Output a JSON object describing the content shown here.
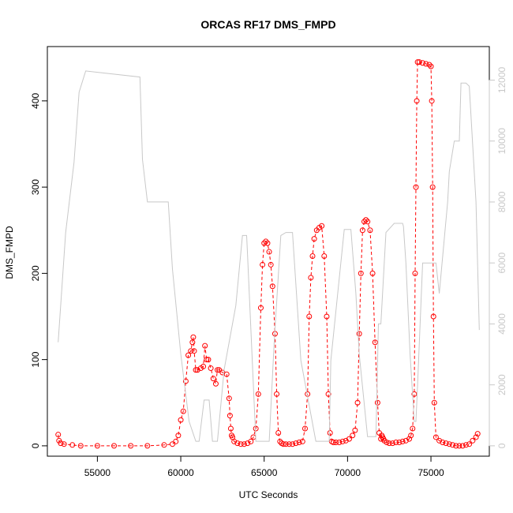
{
  "chart_data": {
    "type": "line",
    "title": "ORCAS RF17 DMS_FMPD",
    "xlabel": "UTC Seconds",
    "ylabel": "DMS_FMPD",
    "xlim": [
      52000,
      78500
    ],
    "ylim": [
      -12,
      463
    ],
    "x_ticks": [
      55000,
      60000,
      65000,
      70000,
      75000
    ],
    "x_tick_labels": [
      "55000",
      "60000",
      "65000",
      "70000",
      "75000"
    ],
    "y_ticks": [
      0,
      100,
      200,
      300,
      400
    ],
    "y_tick_labels": [
      "0",
      "100",
      "200",
      "300",
      "400"
    ],
    "y2lim": [
      -340,
      13100
    ],
    "y2_ticks": [
      0,
      2000,
      4000,
      6000,
      8000,
      10000,
      12000
    ],
    "y2_tick_labels": [
      "0",
      "2000",
      "4000",
      "6000",
      "8000",
      "10000",
      "12000"
    ],
    "grid": false,
    "series": [
      {
        "color": "#ff0000",
        "marker": "open-circle",
        "line": "dashed",
        "axis": "left",
        "x": [
          52650,
          52700,
          52800,
          53000,
          53500,
          54000,
          55000,
          56000,
          57000,
          58000,
          59000,
          59500,
          59700,
          59850,
          60000,
          60150,
          60300,
          60450,
          60600,
          60700,
          60750,
          60800,
          60900,
          61000,
          61200,
          61350,
          61450,
          61550,
          61650,
          61800,
          61950,
          62100,
          62200,
          62300,
          62500,
          62750,
          62900,
          62950,
          63000,
          63050,
          63100,
          63200,
          63400,
          63600,
          63800,
          64000,
          64200,
          64350,
          64500,
          64650,
          64800,
          64900,
          65000,
          65100,
          65200,
          65300,
          65400,
          65500,
          65650,
          65750,
          65850,
          65950,
          66050,
          66150,
          66300,
          66500,
          66700,
          66900,
          67100,
          67300,
          67450,
          67600,
          67700,
          67800,
          67900,
          68000,
          68150,
          68300,
          68450,
          68600,
          68750,
          68850,
          68950,
          69050,
          69150,
          69300,
          69500,
          69700,
          69900,
          70100,
          70300,
          70450,
          70600,
          70700,
          70800,
          70900,
          71000,
          71100,
          71200,
          71350,
          71500,
          71650,
          71800,
          71900,
          72000,
          72050,
          72100,
          72150,
          72200,
          72350,
          72500,
          72700,
          72900,
          73100,
          73300,
          73500,
          73700,
          73800,
          73900,
          74000,
          74050,
          74100,
          74150,
          74200,
          74300,
          74500,
          74700,
          74900,
          75000,
          75050,
          75100,
          75150,
          75200,
          75300,
          75500,
          75700,
          75900,
          76100,
          76300,
          76500,
          76700,
          76900,
          77100,
          77300,
          77500,
          77700,
          77800
        ],
        "y": [
          13,
          6,
          3,
          2,
          1,
          0,
          0,
          0,
          0,
          0,
          1,
          2,
          5,
          12,
          30,
          40,
          75,
          105,
          110,
          120,
          126,
          110,
          88,
          88,
          90,
          92,
          116,
          100,
          100,
          90,
          78,
          72,
          88,
          88,
          85,
          83,
          55,
          35,
          20,
          12,
          10,
          5,
          3,
          2,
          2,
          3,
          5,
          10,
          20,
          60,
          160,
          210,
          235,
          237,
          235,
          225,
          210,
          185,
          130,
          60,
          15,
          5,
          3,
          2,
          2,
          2,
          2,
          3,
          4,
          5,
          20,
          60,
          150,
          195,
          220,
          240,
          250,
          253,
          255,
          220,
          150,
          60,
          15,
          5,
          4,
          4,
          4,
          5,
          6,
          8,
          12,
          18,
          50,
          130,
          200,
          250,
          260,
          262,
          260,
          250,
          200,
          120,
          50,
          15,
          8,
          12,
          10,
          8,
          6,
          4,
          3,
          3,
          4,
          4,
          5,
          6,
          8,
          12,
          20,
          60,
          200,
          300,
          400,
          445,
          445,
          444,
          443,
          442,
          440,
          400,
          300,
          150,
          50,
          10,
          6,
          4,
          3,
          2,
          1,
          0,
          0,
          0,
          1,
          2,
          6,
          10,
          14
        ]
      },
      {
        "color": "#c8c8c8",
        "line": "solid",
        "axis": "right",
        "x": [
          52650,
          53100,
          53600,
          53900,
          54300,
          57550,
          57550,
          57700,
          58000,
          59250,
          59500,
          60000,
          60500,
          60900,
          61100,
          61400,
          61500,
          61700,
          61900,
          62000,
          62200,
          62600,
          63300,
          63700,
          63950,
          64000,
          64500,
          65100,
          65300,
          65600,
          66000,
          66300,
          66500,
          66700,
          67200,
          68100,
          68600,
          68700,
          68900,
          69000,
          69800,
          70200,
          70500,
          70700,
          71200,
          71700,
          71850,
          72000,
          72300,
          72800,
          72950,
          73300,
          73350,
          73500,
          73750,
          74000,
          74100,
          74200,
          74500,
          75300,
          75500,
          76000,
          76100,
          76400,
          76500,
          76650,
          76700,
          76800,
          77100,
          77300,
          77700,
          77900
        ],
        "y": [
          3400,
          7000,
          9300,
          11600,
          12300,
          12100,
          12100,
          9400,
          8000,
          8000,
          5800,
          3000,
          800,
          150,
          150,
          1500,
          1500,
          1500,
          150,
          150,
          150,
          2500,
          4600,
          6900,
          6900,
          6300,
          150,
          150,
          150,
          3400,
          6900,
          7000,
          7000,
          7000,
          2800,
          150,
          150,
          150,
          150,
          2800,
          7100,
          7100,
          5000,
          3000,
          300,
          300,
          4000,
          4000,
          7000,
          7300,
          7300,
          7300,
          7200,
          6000,
          3000,
          800,
          800,
          2000,
          6000,
          6000,
          5000,
          8000,
          9000,
          10000,
          10000,
          10000,
          10000,
          11900,
          11900,
          11800,
          8000,
          3800
        ]
      }
    ]
  }
}
